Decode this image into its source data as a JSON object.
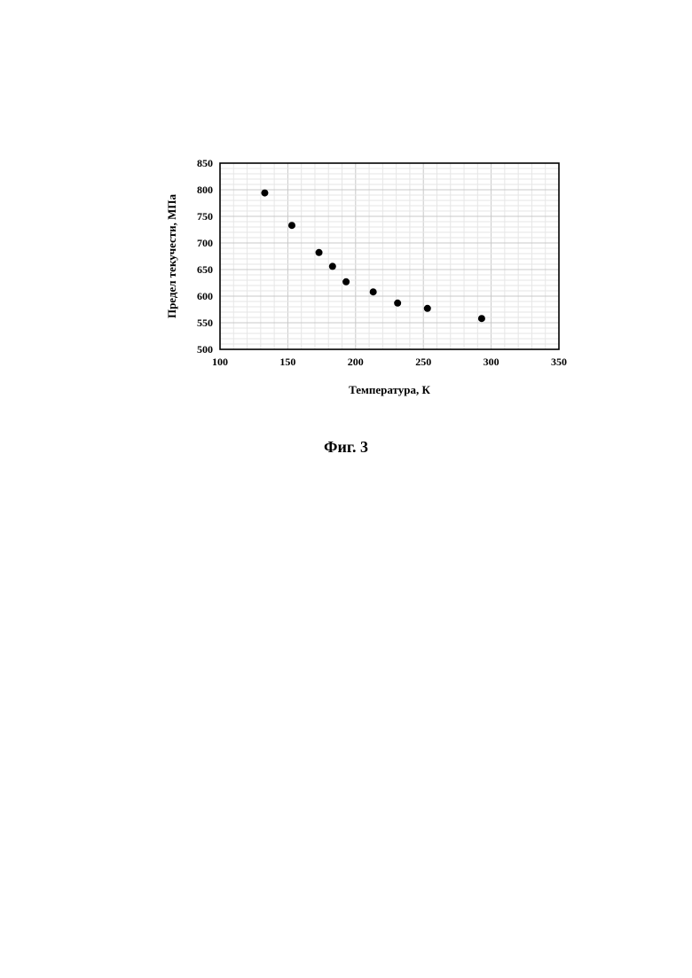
{
  "chart_data": {
    "type": "scatter",
    "xlabel": "Температура, К",
    "ylabel": "Предел текучести, МПа",
    "xlim": [
      100,
      350
    ],
    "ylim": [
      500,
      850
    ],
    "xticks": [
      100,
      150,
      200,
      250,
      300,
      350
    ],
    "yticks": [
      500,
      550,
      600,
      650,
      700,
      750,
      800,
      850
    ],
    "grid": true,
    "series": [
      {
        "x": [
          133,
          153,
          173,
          183,
          193,
          213,
          231,
          253,
          293
        ],
        "y": [
          794,
          733,
          682,
          656,
          627,
          608,
          587,
          577,
          558
        ]
      }
    ]
  },
  "caption": "Фиг. 3"
}
